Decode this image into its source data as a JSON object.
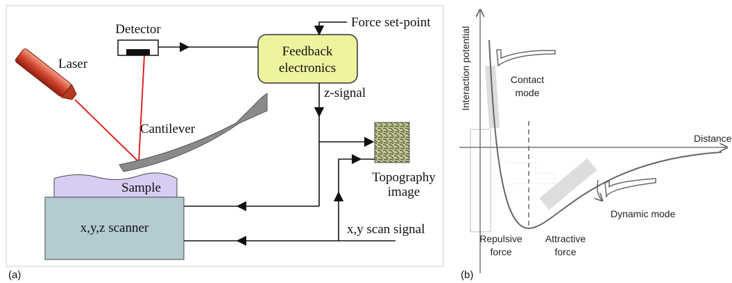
{
  "panel_a": {
    "label": "(a)",
    "detector": "Detector",
    "force_setpoint": "Force set-point",
    "laser": "Laser",
    "feedback": [
      "Feedback",
      "electronics"
    ],
    "z_signal": "z-signal",
    "cantilever": "Cantilever",
    "sample": "Sample",
    "topography": [
      "Topography",
      "image"
    ],
    "scanner": "x,y,z scanner",
    "scan_signal": "x,y scan signal"
  },
  "panel_b": {
    "label": "(b)",
    "y_axis": "Interaction potential",
    "x_axis": "Distance",
    "contact_mode": [
      "Contact",
      "mode"
    ],
    "dynamic_mode": "Dynamic mode",
    "repulsive": [
      "Repulsive",
      "force"
    ],
    "attractive": [
      "Attractive",
      "force"
    ]
  }
}
